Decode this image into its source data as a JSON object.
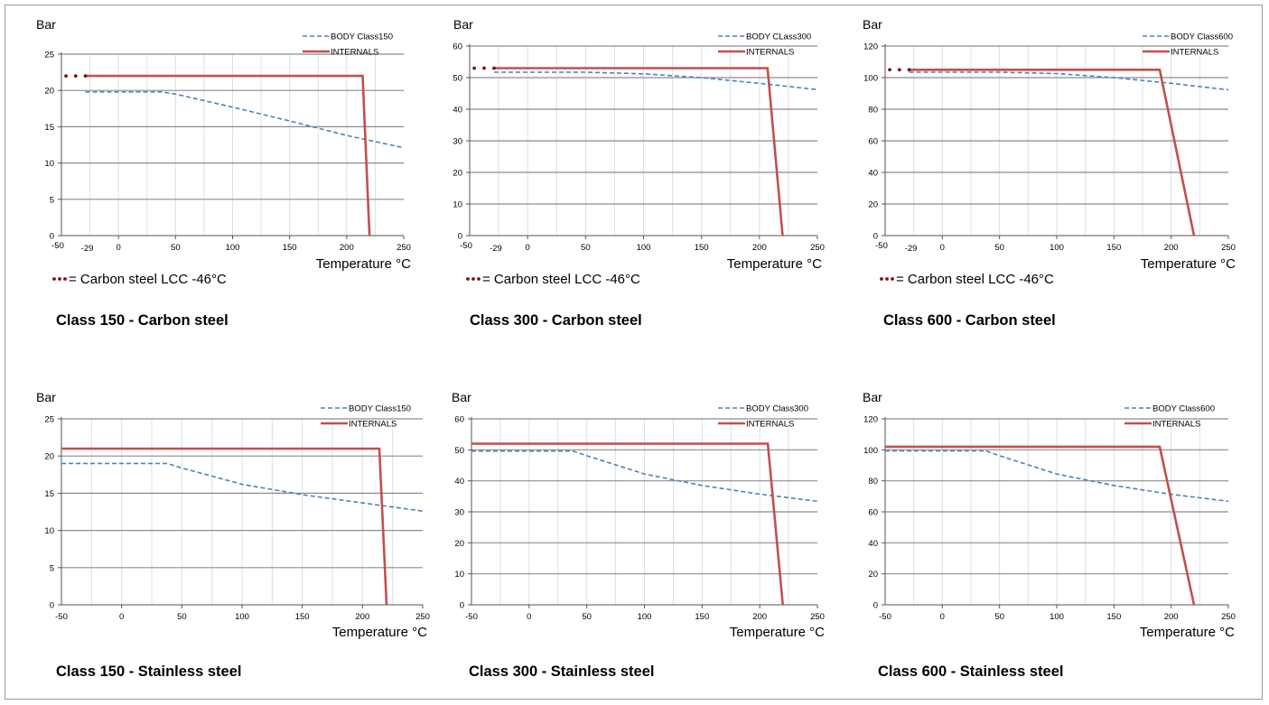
{
  "colors": {
    "body": "#4f81bd",
    "internals": "#c0504d",
    "grid": "#8c8c8c",
    "vgrid": "#d6e0f0",
    "text": "#000000"
  },
  "charts": [
    {
      "y_unit_label": "Bar",
      "x_axis_label": "Temperature °C",
      "title": "Class 150 - Carbon steel",
      "note": "= Carbon steel LCC -46°C",
      "legend": [
        "BODY Class150",
        "INTERNALS"
      ],
      "x_ticks": [
        "-50",
        "-29",
        "0",
        "50",
        "100",
        "150",
        "200",
        "250"
      ],
      "y_ticks": [
        "0",
        "5",
        "10",
        "15",
        "20",
        "25"
      ]
    },
    {
      "y_unit_label": "Bar",
      "x_axis_label": "Temperature °C",
      "title": "Class 300 - Carbon steel",
      "note": "= Carbon steel LCC -46°C",
      "legend": [
        "BODY CLass300",
        "INTERNALS"
      ],
      "x_ticks": [
        "-50",
        "-29",
        "0",
        "50",
        "100",
        "150",
        "200",
        "250"
      ],
      "y_ticks": [
        "0",
        "10",
        "20",
        "30",
        "40",
        "50",
        "60"
      ]
    },
    {
      "y_unit_label": "Bar",
      "x_axis_label": "Temperature °C",
      "title": "Class 600 - Carbon steel",
      "note": "= Carbon steel LCC -46°C",
      "legend": [
        "BODY Class600",
        "INTERNALS"
      ],
      "x_ticks": [
        "-50",
        "-29",
        "0",
        "50",
        "100",
        "150",
        "200",
        "250"
      ],
      "y_ticks": [
        "0",
        "20",
        "40",
        "60",
        "80",
        "100",
        "120"
      ]
    },
    {
      "y_unit_label": "Bar",
      "x_axis_label": "Temperature °C",
      "title": "Class 150 - Stainless steel",
      "note": "",
      "legend": [
        "BODY Class150",
        "INTERNALS"
      ],
      "x_ticks": [
        "-50",
        "0",
        "50",
        "100",
        "150",
        "200",
        "250"
      ],
      "y_ticks": [
        "0",
        "5",
        "10",
        "15",
        "20",
        "25"
      ]
    },
    {
      "y_unit_label": "Bar",
      "x_axis_label": "Temperature °C",
      "title": "Class 300 - Stainless steel",
      "note": "",
      "legend": [
        "BODY Class300",
        "INTERNALS"
      ],
      "x_ticks": [
        "-50",
        "0",
        "50",
        "100",
        "150",
        "200",
        "250"
      ],
      "y_ticks": [
        "0",
        "10",
        "20",
        "30",
        "40",
        "50",
        "60"
      ]
    },
    {
      "y_unit_label": "Bar",
      "x_axis_label": "Temperature °C",
      "title": "Class 600 - Stainless steel",
      "note": "",
      "legend": [
        "BODY Class600",
        "INTERNALS"
      ],
      "x_ticks": [
        "-50",
        "0",
        "50",
        "100",
        "150",
        "200",
        "250"
      ],
      "y_ticks": [
        "0",
        "20",
        "40",
        "60",
        "80",
        "100",
        "120"
      ]
    }
  ],
  "chart_data": [
    {
      "type": "line",
      "title": "Class 150 - Carbon steel",
      "xlabel": "Temperature °C",
      "ylabel": "Bar",
      "xlim": [
        -50,
        250
      ],
      "ylim": [
        0,
        25
      ],
      "grid": true,
      "legend": "top-right",
      "series": [
        {
          "name": "BODY Class150",
          "style": "dashed",
          "points": [
            [
              -29,
              19.8
            ],
            [
              38,
              19.8
            ],
            [
              50,
              19.5
            ],
            [
              100,
              17.7
            ],
            [
              150,
              15.8
            ],
            [
              200,
              13.8
            ],
            [
              250,
              12.1
            ]
          ]
        },
        {
          "name": "INTERNALS",
          "style": "solid",
          "points": [
            [
              -29,
              22
            ],
            [
              214,
              22
            ],
            [
              220,
              0
            ]
          ]
        },
        {
          "name": "Carbon steel LCC -46°C",
          "style": "dotted",
          "points": [
            [
              -46,
              22
            ],
            [
              -29,
              22
            ]
          ]
        }
      ]
    },
    {
      "type": "line",
      "title": "Class 300 - Carbon steel",
      "xlabel": "Temperature °C",
      "ylabel": "Bar",
      "xlim": [
        -50,
        250
      ],
      "ylim": [
        0,
        60
      ],
      "grid": true,
      "legend": "top-right",
      "series": [
        {
          "name": "BODY CLass300",
          "style": "dashed",
          "points": [
            [
              -29,
              51.7
            ],
            [
              38,
              51.7
            ],
            [
              50,
              51.7
            ],
            [
              100,
              51.2
            ],
            [
              150,
              50
            ],
            [
              200,
              48.2
            ],
            [
              250,
              46.2
            ]
          ]
        },
        {
          "name": "INTERNALS",
          "style": "solid",
          "points": [
            [
              -29,
              53
            ],
            [
              207,
              53
            ],
            [
              220,
              0
            ]
          ]
        },
        {
          "name": "Carbon steel LCC -46°C",
          "style": "dotted",
          "points": [
            [
              -46,
              53
            ],
            [
              -29,
              53
            ]
          ]
        }
      ]
    },
    {
      "type": "line",
      "title": "Class 600 - Carbon steel",
      "xlabel": "Temperature °C",
      "ylabel": "Bar",
      "xlim": [
        -50,
        250
      ],
      "ylim": [
        0,
        120
      ],
      "grid": true,
      "legend": "top-right",
      "series": [
        {
          "name": "BODY Class600",
          "style": "dashed",
          "points": [
            [
              -29,
              103.4
            ],
            [
              38,
              103.4
            ],
            [
              50,
              103.4
            ],
            [
              100,
              102.6
            ],
            [
              150,
              100
            ],
            [
              200,
              96.4
            ],
            [
              250,
              92.3
            ]
          ]
        },
        {
          "name": "INTERNALS",
          "style": "solid",
          "points": [
            [
              -29,
              105
            ],
            [
              190,
              105
            ],
            [
              220,
              0
            ]
          ]
        },
        {
          "name": "Carbon steel LCC -46°C",
          "style": "dotted",
          "points": [
            [
              -46,
              105
            ],
            [
              -29,
              105
            ]
          ]
        }
      ]
    },
    {
      "type": "line",
      "title": "Class 150 - Stainless steel",
      "xlabel": "Temperature °C",
      "ylabel": "Bar",
      "xlim": [
        -50,
        250
      ],
      "ylim": [
        0,
        25
      ],
      "grid": true,
      "legend": "top-right",
      "series": [
        {
          "name": "BODY Class150",
          "style": "dashed",
          "points": [
            [
              -50,
              19
            ],
            [
              38,
              19
            ],
            [
              50,
              18.4
            ],
            [
              100,
              16.2
            ],
            [
              150,
              14.8
            ],
            [
              200,
              13.7
            ],
            [
              250,
              12.6
            ]
          ]
        },
        {
          "name": "INTERNALS",
          "style": "solid",
          "points": [
            [
              -50,
              21
            ],
            [
              214,
              21
            ],
            [
              220,
              0
            ]
          ]
        }
      ]
    },
    {
      "type": "line",
      "title": "Class 300 - Stainless steel",
      "xlabel": "Temperature °C",
      "ylabel": "Bar",
      "xlim": [
        -50,
        250
      ],
      "ylim": [
        0,
        60
      ],
      "grid": true,
      "legend": "top-right",
      "series": [
        {
          "name": "BODY Class300",
          "style": "dashed",
          "points": [
            [
              -50,
              49.6
            ],
            [
              38,
              49.6
            ],
            [
              50,
              48.1
            ],
            [
              100,
              42.2
            ],
            [
              150,
              38.5
            ],
            [
              200,
              35.7
            ],
            [
              250,
              33.4
            ]
          ]
        },
        {
          "name": "INTERNALS",
          "style": "solid",
          "points": [
            [
              -50,
              52
            ],
            [
              207,
              52
            ],
            [
              220,
              0
            ]
          ]
        }
      ]
    },
    {
      "type": "line",
      "title": "Class 600 - Stainless steel",
      "xlabel": "Temperature °C",
      "ylabel": "Bar",
      "xlim": [
        -50,
        250
      ],
      "ylim": [
        0,
        120
      ],
      "grid": true,
      "legend": "top-right",
      "series": [
        {
          "name": "BODY Class600",
          "style": "dashed",
          "points": [
            [
              -50,
              99.3
            ],
            [
              38,
              99.3
            ],
            [
              50,
              96.2
            ],
            [
              100,
              84.4
            ],
            [
              150,
              77
            ],
            [
              200,
              71.3
            ],
            [
              250,
              66.8
            ]
          ]
        },
        {
          "name": "INTERNALS",
          "style": "solid",
          "points": [
            [
              -50,
              102
            ],
            [
              190,
              102
            ],
            [
              220,
              0
            ]
          ]
        }
      ]
    }
  ]
}
